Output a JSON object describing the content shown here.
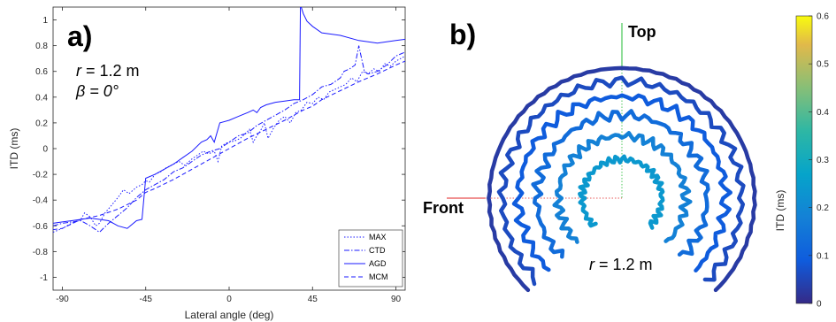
{
  "chart_data": [
    {
      "type": "line",
      "panel_label": "a)",
      "xlabel": "Lateral angle (deg)",
      "ylabel": "ITD (ms)",
      "xlim": [
        -95,
        95
      ],
      "ylim": [
        -1.1,
        1.1
      ],
      "xticks": [
        -90,
        -45,
        0,
        45,
        90
      ],
      "yticks": [
        -1,
        -0.8,
        -0.6,
        -0.4,
        -0.2,
        0,
        0.2,
        0.4,
        0.6,
        0.8,
        1
      ],
      "annotation_r_name": "r",
      "annotation_r_value": " = 1.2 m",
      "annotation_beta_name": "β",
      "annotation_beta_value": " = 0°",
      "legend_position": "bottom-right",
      "series": [
        {
          "name": "MAX",
          "dash": "1.5,2",
          "x": [
            -95,
            -90,
            -85,
            -80,
            -78,
            -75,
            -72,
            -70,
            -67,
            -64,
            -60,
            -57,
            -54,
            -50,
            -47,
            -45,
            -43,
            -40,
            -37,
            -34,
            -30,
            -27,
            -24,
            -20,
            -17,
            -14,
            -11,
            -8,
            -6,
            -4,
            -2,
            0,
            3,
            6,
            9,
            11,
            13,
            15,
            17,
            19,
            21,
            24,
            27,
            30,
            33,
            36,
            39,
            42,
            45,
            48,
            51,
            54,
            57,
            60,
            63,
            66,
            69,
            72,
            75,
            78,
            81,
            84,
            87,
            90,
            95
          ],
          "y": [
            -0.65,
            -0.62,
            -0.58,
            -0.55,
            -0.5,
            -0.53,
            -0.6,
            -0.58,
            -0.5,
            -0.45,
            -0.38,
            -0.32,
            -0.35,
            -0.3,
            -0.28,
            -0.25,
            -0.26,
            -0.2,
            -0.18,
            -0.15,
            -0.12,
            -0.1,
            -0.13,
            -0.08,
            -0.05,
            -0.02,
            -0.04,
            -0.02,
            -0.1,
            0.02,
            0.04,
            0.05,
            0.06,
            0.08,
            0.12,
            0.15,
            0.05,
            0.1,
            0.14,
            0.2,
            0.08,
            0.16,
            0.22,
            0.25,
            0.2,
            0.28,
            0.3,
            0.36,
            0.35,
            0.4,
            0.38,
            0.44,
            0.46,
            0.48,
            0.5,
            0.55,
            0.52,
            0.6,
            0.58,
            0.62,
            0.6,
            0.66,
            0.64,
            0.68,
            0.72
          ]
        },
        {
          "name": "CTD",
          "dash": "6,2,1.5,2",
          "x": [
            -95,
            -90,
            -85,
            -80,
            -75,
            -70,
            -65,
            -60,
            -55,
            -50,
            -45,
            -40,
            -35,
            -30,
            -25,
            -20,
            -15,
            -10,
            -5,
            0,
            5,
            10,
            15,
            20,
            25,
            30,
            35,
            40,
            45,
            50,
            55,
            60,
            62,
            65,
            68,
            70,
            73,
            75,
            80,
            85,
            90,
            95
          ],
          "y": [
            -0.6,
            -0.58,
            -0.57,
            -0.56,
            -0.6,
            -0.65,
            -0.58,
            -0.52,
            -0.46,
            -0.38,
            -0.32,
            -0.28,
            -0.24,
            -0.18,
            -0.15,
            -0.1,
            -0.05,
            -0.02,
            0.0,
            0.05,
            0.1,
            0.12,
            0.18,
            0.22,
            0.26,
            0.3,
            0.35,
            0.38,
            0.42,
            0.48,
            0.5,
            0.55,
            0.6,
            0.62,
            0.65,
            0.8,
            0.6,
            0.58,
            0.6,
            0.65,
            0.72,
            0.75
          ]
        },
        {
          "name": "AGD",
          "dash": "",
          "x": [
            -95,
            -90,
            -85,
            -80,
            -75,
            -70,
            -65,
            -60,
            -55,
            -50,
            -47,
            -45,
            -40,
            -35,
            -30,
            -25,
            -20,
            -15,
            -12,
            -10,
            -8,
            -5,
            0,
            5,
            10,
            13,
            15,
            17,
            20,
            25,
            30,
            35,
            38,
            38.5,
            40,
            42,
            45,
            50,
            60,
            70,
            80,
            90,
            95
          ],
          "y": [
            -0.58,
            -0.57,
            -0.56,
            -0.55,
            -0.54,
            -0.55,
            -0.56,
            -0.6,
            -0.62,
            -0.56,
            -0.55,
            -0.23,
            -0.2,
            -0.16,
            -0.12,
            -0.07,
            -0.02,
            0.05,
            0.07,
            0.1,
            0.05,
            0.2,
            0.22,
            0.25,
            0.28,
            0.3,
            0.28,
            0.32,
            0.34,
            0.36,
            0.37,
            0.38,
            0.38,
            1.12,
            1.05,
            0.99,
            0.95,
            0.9,
            0.88,
            0.84,
            0.82,
            0.84,
            0.85
          ]
        },
        {
          "name": "MCM",
          "dash": "5,3",
          "x": [
            -95,
            -90,
            -80,
            -70,
            -60,
            -50,
            -45,
            -40,
            -30,
            -20,
            -10,
            0,
            10,
            20,
            30,
            40,
            45,
            50,
            60,
            70,
            80,
            90,
            95
          ],
          "y": [
            -0.63,
            -0.62,
            -0.55,
            -0.52,
            -0.47,
            -0.4,
            -0.34,
            -0.31,
            -0.24,
            -0.16,
            -0.08,
            0.0,
            0.08,
            0.15,
            0.22,
            0.3,
            0.33,
            0.38,
            0.45,
            0.52,
            0.58,
            0.65,
            0.68
          ]
        }
      ]
    },
    {
      "type": "heatmap",
      "panel_label": "b)",
      "direction_top": "Top",
      "direction_front": "Front",
      "annotation_r_name": "r",
      "annotation_r_value": " = 1.2 m",
      "colorbar_label": "ITD (ms)",
      "colorbar_range": [
        0,
        0.6
      ],
      "colorbar_ticks": [
        0,
        0.1,
        0.2,
        0.3,
        0.4,
        0.5,
        0.6
      ],
      "contour_levels": [
        {
          "scale": 1.0,
          "itd": 0.03
        },
        {
          "scale": 0.9,
          "itd": 0.06
        },
        {
          "scale": 0.78,
          "itd": 0.09
        },
        {
          "scale": 0.64,
          "itd": 0.13
        },
        {
          "scale": 0.48,
          "itd": 0.18
        },
        {
          "scale": 0.3,
          "itd": 0.24
        }
      ]
    }
  ]
}
